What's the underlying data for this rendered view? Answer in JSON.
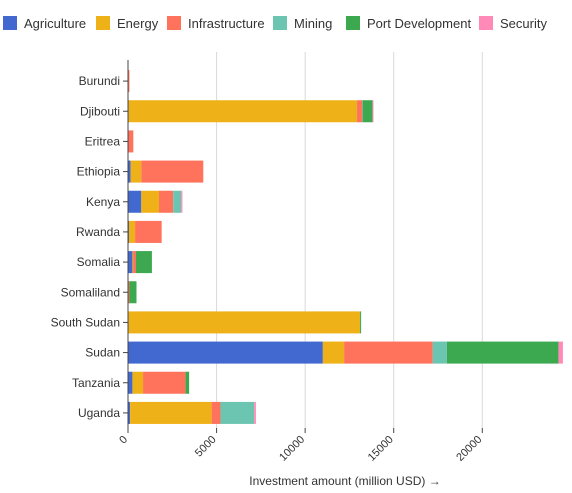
{
  "chart_data": {
    "type": "bar",
    "orientation": "horizontal",
    "stacked": true,
    "title": "",
    "xlabel": "Investment amount (million USD) →",
    "ylabel": "",
    "xlim": [
      0,
      24500
    ],
    "x_ticks": [
      0,
      5000,
      10000,
      15000,
      20000
    ],
    "grid": true,
    "legend_position": "top",
    "categories": [
      "Burundi",
      "Djibouti",
      "Eritrea",
      "Ethiopia",
      "Kenya",
      "Rwanda",
      "Somalia",
      "Somaliland",
      "South Sudan",
      "Sudan",
      "Tanzania",
      "Uganda"
    ],
    "series": [
      {
        "name": "Agriculture",
        "color": "#4269d0",
        "values": [
          0,
          30,
          0,
          150,
          750,
          50,
          250,
          0,
          0,
          11000,
          250,
          120
        ]
      },
      {
        "name": "Energy",
        "color": "#efb118",
        "values": [
          0,
          12900,
          0,
          600,
          1000,
          350,
          50,
          30,
          13100,
          1200,
          600,
          4600
        ]
      },
      {
        "name": "Infrastructure",
        "color": "#ff725c",
        "values": [
          80,
          300,
          300,
          3500,
          800,
          1500,
          150,
          50,
          0,
          5000,
          2400,
          500
        ]
      },
      {
        "name": "Mining",
        "color": "#6cc5b0",
        "values": [
          0,
          20,
          0,
          0,
          450,
          0,
          0,
          0,
          0,
          800,
          0,
          1900
        ]
      },
      {
        "name": "Port Development",
        "color": "#3ca951",
        "values": [
          0,
          550,
          0,
          0,
          0,
          0,
          900,
          400,
          60,
          6300,
          200,
          0
        ]
      },
      {
        "name": "Security",
        "color": "#ff8ab7",
        "values": [
          0,
          20,
          0,
          0,
          70,
          0,
          0,
          0,
          0,
          250,
          0,
          100
        ]
      }
    ]
  }
}
